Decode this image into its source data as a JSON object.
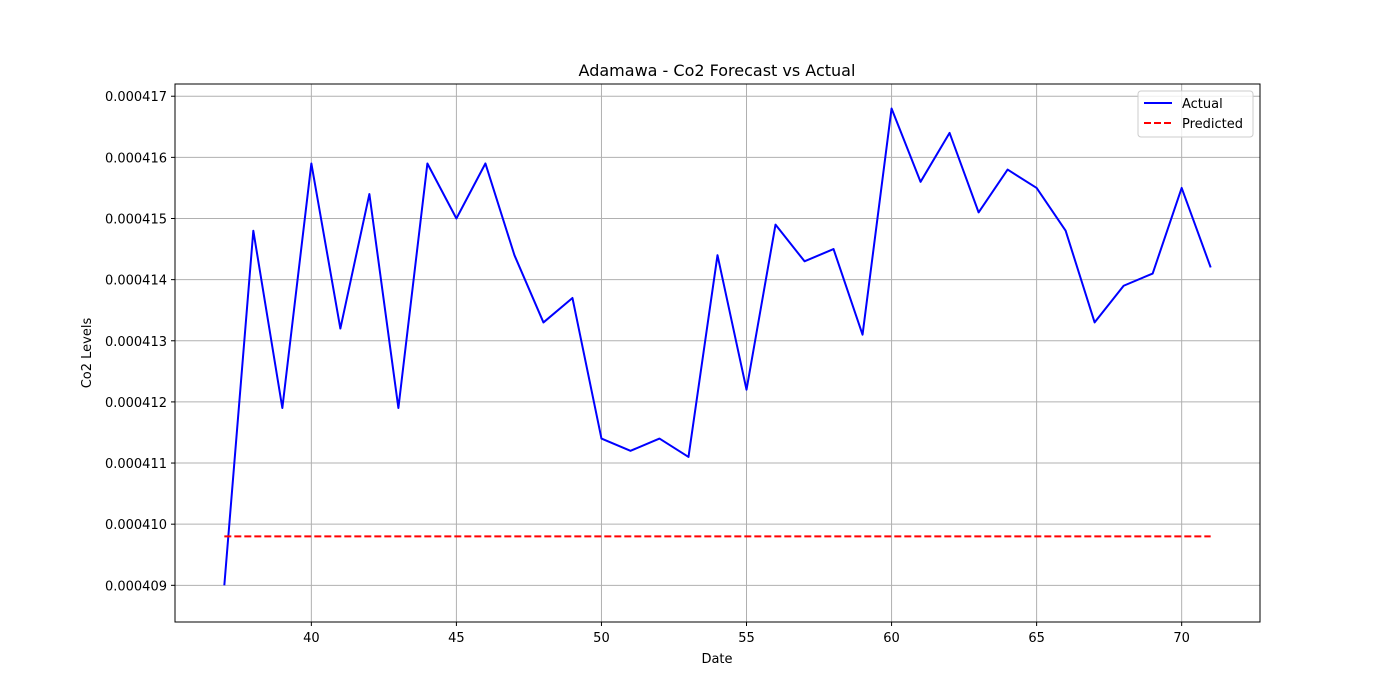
{
  "chart_data": {
    "type": "line",
    "title": "Adamawa - Co2 Forecast vs Actual",
    "xlabel": "Date",
    "ylabel": "Co2 Levels",
    "xlim": [
      35.3,
      72.7
    ],
    "ylim": [
      0.0004084,
      0.0004172
    ],
    "xticks": [
      40,
      45,
      50,
      55,
      60,
      65,
      70
    ],
    "yticks": [
      0.000409,
      0.00041,
      0.000411,
      0.000412,
      0.000413,
      0.000414,
      0.000415,
      0.000416,
      0.000417
    ],
    "xtick_labels": [
      "40",
      "45",
      "50",
      "55",
      "60",
      "65",
      "70"
    ],
    "ytick_labels": [
      "0.000409",
      "0.000410",
      "0.000411",
      "0.000412",
      "0.000413",
      "0.000414",
      "0.000415",
      "0.000416",
      "0.000417"
    ],
    "grid": true,
    "legend": "top-right",
    "x": [
      37,
      38,
      39,
      40,
      41,
      42,
      43,
      44,
      45,
      46,
      47,
      48,
      49,
      50,
      51,
      52,
      53,
      54,
      55,
      56,
      57,
      58,
      59,
      60,
      61,
      62,
      63,
      64,
      65,
      66,
      67,
      68,
      69,
      70,
      71
    ],
    "series": [
      {
        "name": "Actual",
        "color": "#0000ff",
        "style": "solid",
        "values": [
          0.000409,
          0.0004148,
          0.0004119,
          0.0004159,
          0.0004132,
          0.0004154,
          0.0004119,
          0.0004159,
          0.000415,
          0.0004159,
          0.0004144,
          0.0004133,
          0.0004137,
          0.0004114,
          0.0004112,
          0.0004114,
          0.0004111,
          0.0004144,
          0.0004122,
          0.0004149,
          0.0004143,
          0.0004145,
          0.0004131,
          0.0004168,
          0.0004156,
          0.0004164,
          0.0004151,
          0.0004158,
          0.0004155,
          0.0004148,
          0.0004133,
          0.0004139,
          0.0004141,
          0.0004155,
          0.0004142
        ]
      },
      {
        "name": "Predicted",
        "color": "#ff0000",
        "style": "dashed",
        "values": [
          0.0004098,
          0.0004098,
          0.0004098,
          0.0004098,
          0.0004098,
          0.0004098,
          0.0004098,
          0.0004098,
          0.0004098,
          0.0004098,
          0.0004098,
          0.0004098,
          0.0004098,
          0.0004098,
          0.0004098,
          0.0004098,
          0.0004098,
          0.0004098,
          0.0004098,
          0.0004098,
          0.0004098,
          0.0004098,
          0.0004098,
          0.0004098,
          0.0004098,
          0.0004098,
          0.0004098,
          0.0004098,
          0.0004098,
          0.0004098,
          0.0004098,
          0.0004098,
          0.0004098,
          0.0004098,
          0.0004098
        ]
      }
    ]
  }
}
